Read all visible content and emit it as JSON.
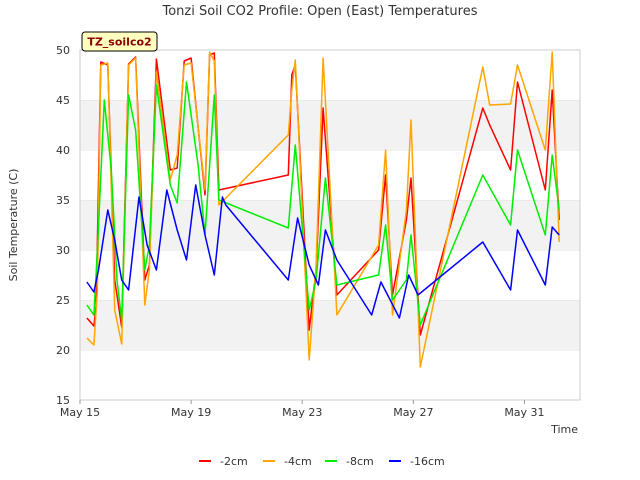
{
  "chart_data": {
    "type": "line",
    "title": "Tonzi Soil CO2 Profile: Open (East) Temperatures",
    "xlabel": "Time",
    "ylabel": "Soil Temperature (C)",
    "badge": "TZ_soilco2",
    "ylim": [
      15,
      50
    ],
    "yticks": [
      15,
      20,
      25,
      30,
      35,
      40,
      45,
      50
    ],
    "xlim": [
      "2024-05-15",
      "2024-06-02"
    ],
    "xticks": [
      {
        "value": "2024-05-15",
        "label": "May 15"
      },
      {
        "value": "2024-05-19",
        "label": "May 19"
      },
      {
        "value": "2024-05-23",
        "label": "May 23"
      },
      {
        "value": "2024-05-27",
        "label": "May 27"
      },
      {
        "value": "2024-05-31",
        "label": "May 31"
      }
    ],
    "grid": "alternating horizontal bands",
    "legend_position": "bottom",
    "series": [
      {
        "name": "-2cm",
        "color": "#ff0000",
        "points": [
          [
            "2024-05-15T06:00",
            23.2
          ],
          [
            "2024-05-15T12:00",
            22.4
          ],
          [
            "2024-05-15T14:00",
            24.5
          ],
          [
            "2024-05-15T18:00",
            48.8
          ],
          [
            "2024-05-16T00:00",
            48.5
          ],
          [
            "2024-05-16T06:00",
            27.0
          ],
          [
            "2024-05-16T12:00",
            22.3
          ],
          [
            "2024-05-16T18:00",
            48.6
          ],
          [
            "2024-05-17T00:00",
            49.3
          ],
          [
            "2024-05-17T08:00",
            27.0
          ],
          [
            "2024-05-17T12:00",
            28.5
          ],
          [
            "2024-05-17T18:00",
            49.1
          ],
          [
            "2024-05-18T06:00",
            38.0
          ],
          [
            "2024-05-18T12:00",
            38.2
          ],
          [
            "2024-05-18T18:00",
            48.9
          ],
          [
            "2024-05-19T00:00",
            49.2
          ],
          [
            "2024-05-19T12:00",
            35.5
          ],
          [
            "2024-05-19T16:00",
            49.5
          ],
          [
            "2024-05-19T20:00",
            49.7
          ],
          [
            "2024-05-20T00:00",
            36.0
          ],
          [
            "2024-05-22T12:00",
            37.5
          ],
          [
            "2024-05-22T15:00",
            47.5
          ],
          [
            "2024-05-22T18:00",
            48.5
          ],
          [
            "2024-05-23T06:00",
            22.0
          ],
          [
            "2024-05-23T12:00",
            28.0
          ],
          [
            "2024-05-23T18:00",
            44.2
          ],
          [
            "2024-05-24T06:00",
            25.5
          ],
          [
            "2024-05-25T18:00",
            30.0
          ],
          [
            "2024-05-26T00:00",
            37.5
          ],
          [
            "2024-05-26T06:00",
            25.5
          ],
          [
            "2024-05-26T18:00",
            33.0
          ],
          [
            "2024-05-26T22:00",
            37.2
          ],
          [
            "2024-05-27T06:00",
            21.5
          ],
          [
            "2024-05-29T12:00",
            44.2
          ],
          [
            "2024-05-29T18:00",
            42.5
          ],
          [
            "2024-05-30T12:00",
            38.0
          ],
          [
            "2024-05-30T18:00",
            46.8
          ],
          [
            "2024-05-31T18:00",
            36.0
          ],
          [
            "2024-06-01T00:00",
            46.0
          ],
          [
            "2024-06-01T06:00",
            33.0
          ]
        ]
      },
      {
        "name": "-4cm",
        "color": "#ffa500",
        "points": [
          [
            "2024-05-15T06:00",
            21.2
          ],
          [
            "2024-05-15T12:00",
            20.5
          ],
          [
            "2024-05-15T15:00",
            26.0
          ],
          [
            "2024-05-15T18:00",
            48.5
          ],
          [
            "2024-05-16T00:00",
            48.7
          ],
          [
            "2024-05-16T06:00",
            24.0
          ],
          [
            "2024-05-16T12:00",
            20.6
          ],
          [
            "2024-05-16T18:00",
            48.5
          ],
          [
            "2024-05-17T00:00",
            49.2
          ],
          [
            "2024-05-17T08:00",
            24.5
          ],
          [
            "2024-05-17T12:00",
            28.0
          ],
          [
            "2024-05-17T18:00",
            47.8
          ],
          [
            "2024-05-18T06:00",
            37.0
          ],
          [
            "2024-05-18T12:00",
            39.5
          ],
          [
            "2024-05-18T18:00",
            48.5
          ],
          [
            "2024-05-19T00:00",
            48.7
          ],
          [
            "2024-05-19T12:00",
            36.0
          ],
          [
            "2024-05-19T16:00",
            49.8
          ],
          [
            "2024-05-19T20:00",
            48.9
          ],
          [
            "2024-05-20T00:00",
            34.5
          ],
          [
            "2024-05-22T12:00",
            41.5
          ],
          [
            "2024-05-22T15:00",
            46.0
          ],
          [
            "2024-05-22T18:00",
            49.0
          ],
          [
            "2024-05-23T06:00",
            19.0
          ],
          [
            "2024-05-23T12:00",
            28.5
          ],
          [
            "2024-05-23T18:00",
            49.2
          ],
          [
            "2024-05-24T06:00",
            23.5
          ],
          [
            "2024-05-25T18:00",
            30.5
          ],
          [
            "2024-05-26T00:00",
            40.0
          ],
          [
            "2024-05-26T06:00",
            23.5
          ],
          [
            "2024-05-26T18:00",
            34.0
          ],
          [
            "2024-05-26T22:00",
            43.0
          ],
          [
            "2024-05-27T06:00",
            18.3
          ],
          [
            "2024-05-29T12:00",
            48.3
          ],
          [
            "2024-05-29T18:00",
            44.5
          ],
          [
            "2024-05-30T12:00",
            44.6
          ],
          [
            "2024-05-30T18:00",
            48.5
          ],
          [
            "2024-05-31T18:00",
            40.0
          ],
          [
            "2024-06-01T00:00",
            49.8
          ],
          [
            "2024-06-01T06:00",
            30.8
          ]
        ]
      },
      {
        "name": "-8cm",
        "color": "#00ee00",
        "points": [
          [
            "2024-05-15T06:00",
            24.5
          ],
          [
            "2024-05-15T12:00",
            23.5
          ],
          [
            "2024-05-15T15:00",
            30.0
          ],
          [
            "2024-05-15T21:00",
            45.0
          ],
          [
            "2024-05-16T03:00",
            38.0
          ],
          [
            "2024-05-16T08:00",
            27.0
          ],
          [
            "2024-05-16T12:00",
            23.0
          ],
          [
            "2024-05-16T18:00",
            45.5
          ],
          [
            "2024-05-17T00:00",
            42.0
          ],
          [
            "2024-05-17T08:00",
            28.0
          ],
          [
            "2024-05-17T12:00",
            30.5
          ],
          [
            "2024-05-17T18:00",
            46.5
          ],
          [
            "2024-05-18T06:00",
            36.5
          ],
          [
            "2024-05-18T12:00",
            34.7
          ],
          [
            "2024-05-18T20:00",
            46.8
          ],
          [
            "2024-05-19T06:00",
            38.5
          ],
          [
            "2024-05-19T12:00",
            31.5
          ],
          [
            "2024-05-19T20:00",
            45.5
          ],
          [
            "2024-05-20T00:00",
            35.0
          ],
          [
            "2024-05-22T12:00",
            32.2
          ],
          [
            "2024-05-22T18:00",
            40.5
          ],
          [
            "2024-05-23T06:00",
            24.0
          ],
          [
            "2024-05-23T12:00",
            27.0
          ],
          [
            "2024-05-23T20:00",
            37.2
          ],
          [
            "2024-05-24T06:00",
            26.5
          ],
          [
            "2024-05-25T18:00",
            27.5
          ],
          [
            "2024-05-26T00:00",
            32.5
          ],
          [
            "2024-05-26T06:00",
            25.0
          ],
          [
            "2024-05-26T18:00",
            27.0
          ],
          [
            "2024-05-26T22:00",
            31.5
          ],
          [
            "2024-05-27T06:00",
            22.5
          ],
          [
            "2024-05-29T12:00",
            37.5
          ],
          [
            "2024-05-30T12:00",
            32.5
          ],
          [
            "2024-05-30T18:00",
            40.0
          ],
          [
            "2024-05-31T18:00",
            31.5
          ],
          [
            "2024-06-01T00:00",
            39.5
          ],
          [
            "2024-06-01T06:00",
            34.0
          ]
        ]
      },
      {
        "name": "-16cm",
        "color": "#0000ff",
        "points": [
          [
            "2024-05-15T06:00",
            26.8
          ],
          [
            "2024-05-15T12:00",
            25.8
          ],
          [
            "2024-05-15T16:00",
            28.0
          ],
          [
            "2024-05-16T00:00",
            34.0
          ],
          [
            "2024-05-16T06:00",
            31.0
          ],
          [
            "2024-05-16T12:00",
            27.0
          ],
          [
            "2024-05-16T18:00",
            26.0
          ],
          [
            "2024-05-17T03:00",
            35.3
          ],
          [
            "2024-05-17T10:00",
            30.5
          ],
          [
            "2024-05-17T18:00",
            28.0
          ],
          [
            "2024-05-18T03:00",
            36.0
          ],
          [
            "2024-05-18T12:00",
            32.0
          ],
          [
            "2024-05-18T20:00",
            29.0
          ],
          [
            "2024-05-19T04:00",
            36.5
          ],
          [
            "2024-05-19T12:00",
            31.5
          ],
          [
            "2024-05-19T20:00",
            27.5
          ],
          [
            "2024-05-20T03:00",
            35.3
          ],
          [
            "2024-05-20T06:00",
            34.5
          ],
          [
            "2024-05-22T12:00",
            27.0
          ],
          [
            "2024-05-22T20:00",
            33.2
          ],
          [
            "2024-05-23T06:00",
            28.5
          ],
          [
            "2024-05-23T14:00",
            26.5
          ],
          [
            "2024-05-23T20:00",
            32.0
          ],
          [
            "2024-05-24T06:00",
            29.0
          ],
          [
            "2024-05-25T12:00",
            23.5
          ],
          [
            "2024-05-25T20:00",
            26.8
          ],
          [
            "2024-05-26T04:00",
            25.0
          ],
          [
            "2024-05-26T12:00",
            23.2
          ],
          [
            "2024-05-26T20:00",
            27.5
          ],
          [
            "2024-05-27T04:00",
            25.5
          ],
          [
            "2024-05-29T12:00",
            30.8
          ],
          [
            "2024-05-30T12:00",
            26.0
          ],
          [
            "2024-05-30T18:00",
            32.0
          ],
          [
            "2024-05-31T18:00",
            26.5
          ],
          [
            "2024-06-01T00:00",
            32.3
          ],
          [
            "2024-06-01T06:00",
            31.5
          ]
        ]
      }
    ]
  }
}
